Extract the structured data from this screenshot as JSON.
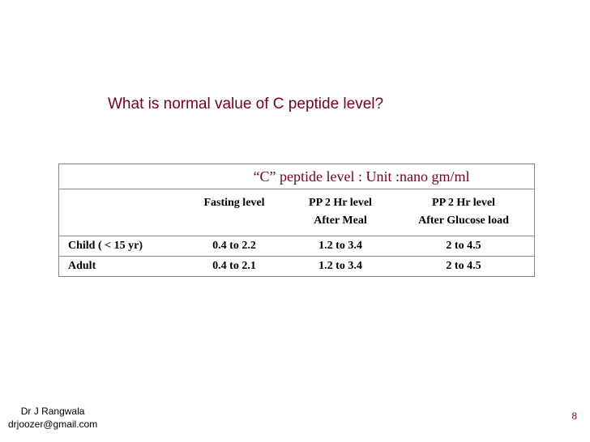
{
  "slide": {
    "title": "What is normal value of C peptide level?",
    "page_number": "8"
  },
  "table": {
    "caption": "“C” peptide level : Unit :nano gm/ml",
    "columns": [
      {
        "line1": "",
        "line2": ""
      },
      {
        "line1": "Fasting level",
        "line2": ""
      },
      {
        "line1": "PP 2 Hr level",
        "line2": "After Meal"
      },
      {
        "line1": "PP 2 Hr level",
        "line2": "After Glucose load"
      }
    ],
    "rows": [
      {
        "label": "Child ( < 15 yr)",
        "fasting": "0.4 to 2.2",
        "after_meal": "1.2 to 3.4",
        "after_glucose": "2 to 4.5"
      },
      {
        "label": "Adult",
        "fasting": "0.4 to 2.1",
        "after_meal": "1.2 to 3.4",
        "after_glucose": "2 to 4.5"
      }
    ]
  },
  "footer": {
    "author": "Dr J Rangwala",
    "email": "drjoozer@gmail.com"
  }
}
